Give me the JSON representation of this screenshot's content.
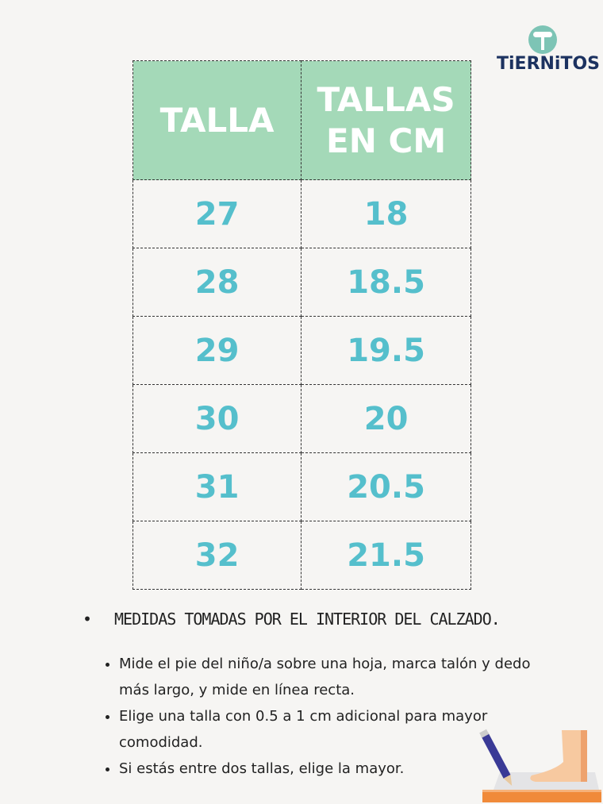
{
  "brand": {
    "logo_text": "TiERNiTOS",
    "color": "#1c3260",
    "accent": "#7dc4b5"
  },
  "table": {
    "headers": [
      "TALLA",
      "TALLAS EN CM"
    ],
    "header_color": "#a4d9b8",
    "value_color": "#55bfcc",
    "rows": [
      [
        "27",
        "18"
      ],
      [
        "28",
        "18.5"
      ],
      [
        "29",
        "19.5"
      ],
      [
        "30",
        "20"
      ],
      [
        "31",
        "20.5"
      ],
      [
        "32",
        "21.5"
      ]
    ]
  },
  "notes": {
    "main": "MEDIDAS TOMADAS POR EL INTERIOR DEL CALZADO.",
    "tips": [
      "Mide el pie del niño/a sobre una hoja, marca talón y dedo más largo, y mide en línea recta.",
      "Elige una talla con 0.5 a 1 cm adicional para mayor comodidad.",
      "Si estás entre dos tallas, elige la mayor."
    ]
  },
  "illustration": "foot-measuring-icon"
}
